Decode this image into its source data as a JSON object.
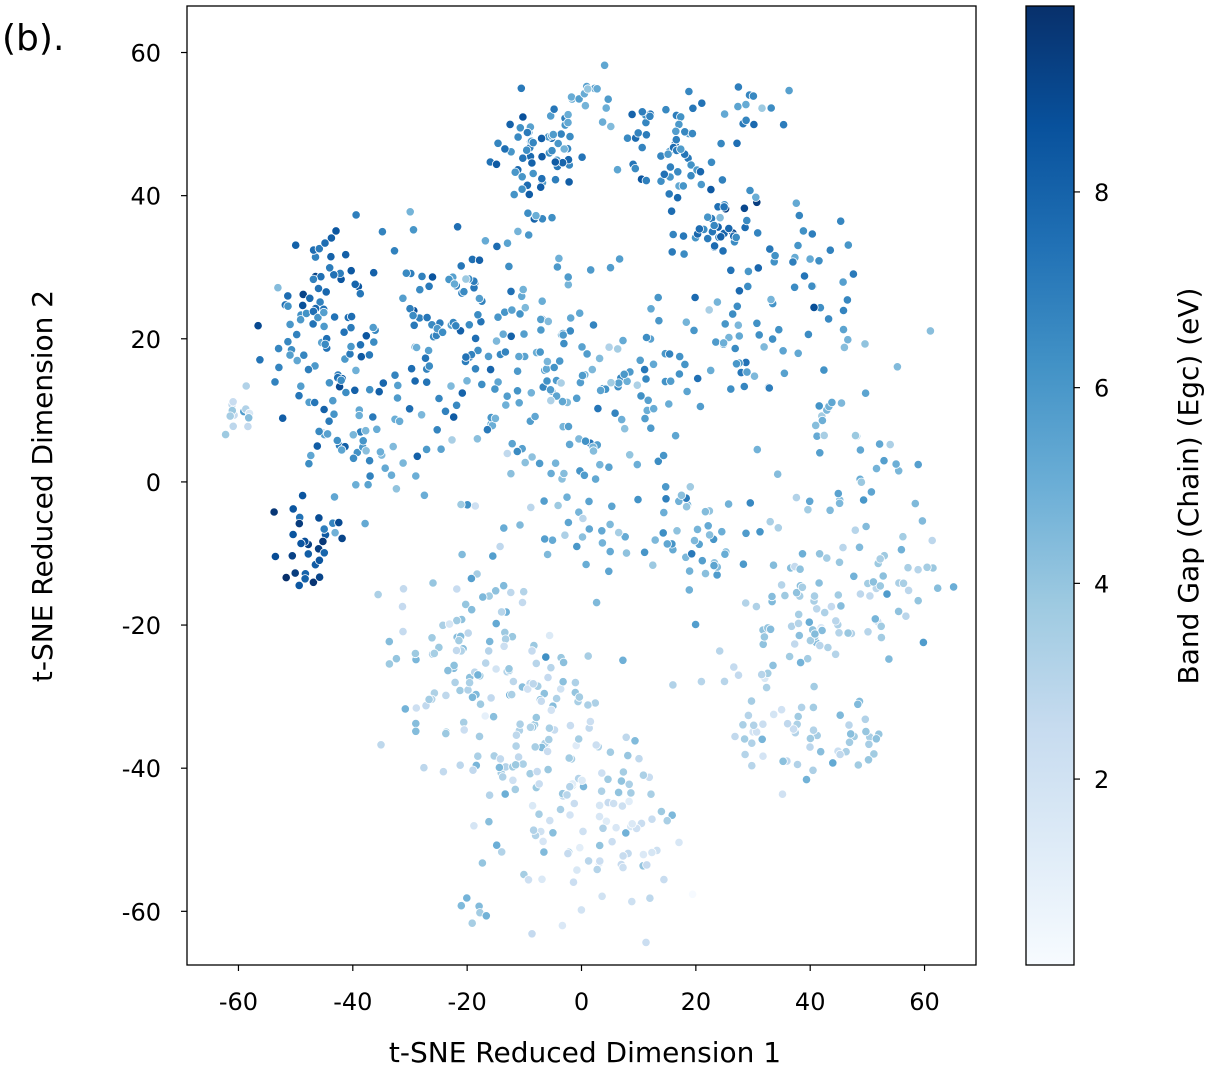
{
  "panel_label": "(b).",
  "chart_data": {
    "type": "scatter",
    "xlabel": "t-SNE Reduced Dimension 1",
    "ylabel": "t-SNE Reduced Dimension 2",
    "xlim": [
      -69,
      69
    ],
    "ylim": [
      -67.5,
      66.5
    ],
    "xticks": [
      "-60",
      "-40",
      "-20",
      "0",
      "20",
      "40",
      "60"
    ],
    "yticks": [
      "60",
      "40",
      "20",
      "0",
      "-20",
      "-40",
      "-60"
    ],
    "xtick_values": [
      -60,
      -40,
      -20,
      0,
      20,
      40,
      60
    ],
    "ytick_values": [
      60,
      40,
      20,
      0,
      -20,
      -40,
      -60
    ],
    "colorbar": {
      "label": "Band Gap (Chain) (Egc) (eV)",
      "range": [
        0.1,
        9.9
      ],
      "ticks": [
        "2",
        "4",
        "6",
        "8"
      ],
      "tick_values": [
        2,
        4,
        6,
        8
      ],
      "colors": [
        "#f7fbff",
        "#deebf7",
        "#c6dbef",
        "#9ecae1",
        "#6baed6",
        "#4292c6",
        "#2171b5",
        "#08519c",
        "#08306b"
      ]
    },
    "grid": false,
    "clusters": [
      {
        "x": -8,
        "y": 45,
        "spread": 4,
        "value": 7.0,
        "count": 60
      },
      {
        "x": 15,
        "y": 47,
        "spread": 4,
        "value": 6.8,
        "count": 50
      },
      {
        "x": 24,
        "y": 35,
        "spread": 4,
        "value": 7.2,
        "count": 45
      },
      {
        "x": -43,
        "y": 28,
        "spread": 4,
        "value": 7.8,
        "count": 35
      },
      {
        "x": -26,
        "y": 22,
        "spread": 7,
        "value": 6.8,
        "count": 80
      },
      {
        "x": -50,
        "y": 20,
        "spread": 4,
        "value": 6.5,
        "count": 30
      },
      {
        "x": -42,
        "y": 12,
        "spread": 5,
        "value": 7.0,
        "count": 40
      },
      {
        "x": -8,
        "y": 18,
        "spread": 9,
        "value": 5.5,
        "count": 90
      },
      {
        "x": 10,
        "y": 15,
        "spread": 6,
        "value": 6.0,
        "count": 40
      },
      {
        "x": 28,
        "y": 20,
        "spread": 5,
        "value": 5.5,
        "count": 35
      },
      {
        "x": -48,
        "y": -9,
        "spread": 3,
        "value": 8.2,
        "count": 30
      },
      {
        "x": -20,
        "y": -25,
        "spread": 7,
        "value": 3.5,
        "count": 90
      },
      {
        "x": -5,
        "y": -38,
        "spread": 8,
        "value": 3.2,
        "count": 110
      },
      {
        "x": 5,
        "y": -50,
        "spread": 6,
        "value": 2.5,
        "count": 60
      },
      {
        "x": 20,
        "y": -8,
        "spread": 5,
        "value": 5.0,
        "count": 45
      },
      {
        "x": 40,
        "y": -20,
        "spread": 6,
        "value": 3.5,
        "count": 60
      },
      {
        "x": 52,
        "y": -15,
        "spread": 5,
        "value": 3.8,
        "count": 40
      },
      {
        "x": 33,
        "y": -33,
        "spread": 4,
        "value": 3.0,
        "count": 35
      },
      {
        "x": 47,
        "y": -37,
        "spread": 3,
        "value": 3.5,
        "count": 25
      },
      {
        "x": 45,
        "y": 5,
        "spread": 8,
        "value": 4.5,
        "count": 50
      },
      {
        "x": -35,
        "y": 5,
        "spread": 5,
        "value": 5.0,
        "count": 30
      },
      {
        "x": -5,
        "y": 0,
        "spread": 10,
        "value": 4.8,
        "count": 70
      },
      {
        "x": -60,
        "y": 10,
        "spread": 2,
        "value": 3.0,
        "count": 12
      },
      {
        "x": -18,
        "y": -60,
        "spread": 1.5,
        "value": 4.5,
        "count": 6
      },
      {
        "x": 40,
        "y": 30,
        "spread": 5,
        "value": 6.5,
        "count": 30
      },
      {
        "x": 30,
        "y": 52,
        "spread": 3,
        "value": 6.5,
        "count": 15
      },
      {
        "x": 0,
        "y": 53,
        "spread": 3,
        "value": 5.5,
        "count": 20
      }
    ]
  }
}
